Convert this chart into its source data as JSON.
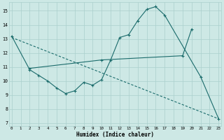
{
  "xlabel": "Humidex (Indice chaleur)",
  "bg_color": "#cde8e5",
  "grid_color": "#aacfcc",
  "line_color": "#1a6b6b",
  "line1_x": [
    0,
    2,
    3,
    4,
    5,
    6,
    7,
    8,
    9,
    10,
    11,
    12,
    13,
    14,
    15,
    16,
    17,
    21,
    23
  ],
  "line1_y": [
    13.2,
    10.8,
    10.4,
    10.0,
    9.5,
    9.1,
    9.3,
    9.9,
    9.7,
    10.1,
    11.5,
    13.1,
    13.3,
    14.3,
    15.1,
    15.3,
    14.7,
    10.3,
    7.3
  ],
  "line2_x": [
    0,
    23
  ],
  "line2_y": [
    13.1,
    7.3
  ],
  "line3_x": [
    2,
    10,
    19,
    20
  ],
  "line3_y": [
    10.9,
    11.5,
    11.8,
    13.7
  ],
  "ylim": [
    6.8,
    15.6
  ],
  "xlim": [
    -0.3,
    23.3
  ],
  "yticks": [
    7,
    8,
    9,
    10,
    11,
    12,
    13,
    14,
    15
  ],
  "xticks": [
    0,
    1,
    2,
    3,
    4,
    5,
    6,
    7,
    8,
    9,
    10,
    11,
    12,
    13,
    14,
    15,
    16,
    17,
    18,
    19,
    20,
    21,
    22,
    23
  ]
}
